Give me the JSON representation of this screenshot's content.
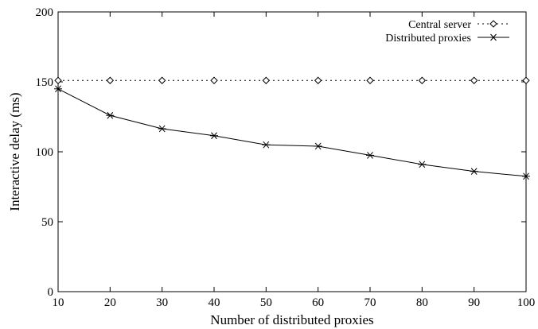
{
  "chart_data": {
    "type": "line",
    "title": "",
    "xlabel": "Number of distributed proxies",
    "ylabel": "Interactive delay (ms)",
    "xlim": [
      10,
      100
    ],
    "ylim": [
      0,
      200
    ],
    "x_ticks": [
      10,
      20,
      30,
      40,
      50,
      60,
      70,
      80,
      90,
      100
    ],
    "y_ticks": [
      0,
      50,
      100,
      150,
      200
    ],
    "grid": false,
    "legend_position": "top-right",
    "x": [
      10,
      20,
      30,
      40,
      50,
      60,
      70,
      80,
      90,
      100
    ],
    "series": [
      {
        "name": "Central server",
        "values": [
          151,
          151,
          151,
          151,
          151,
          151,
          151,
          151,
          151,
          151
        ],
        "marker": "diamond",
        "line_style": "dotted",
        "color": "#000000"
      },
      {
        "name": "Distributed proxies",
        "values": [
          145,
          126,
          116.5,
          111.5,
          105,
          104,
          97.5,
          91,
          86,
          82.5
        ],
        "marker": "asterisk",
        "line_style": "solid",
        "color": "#000000"
      }
    ]
  }
}
